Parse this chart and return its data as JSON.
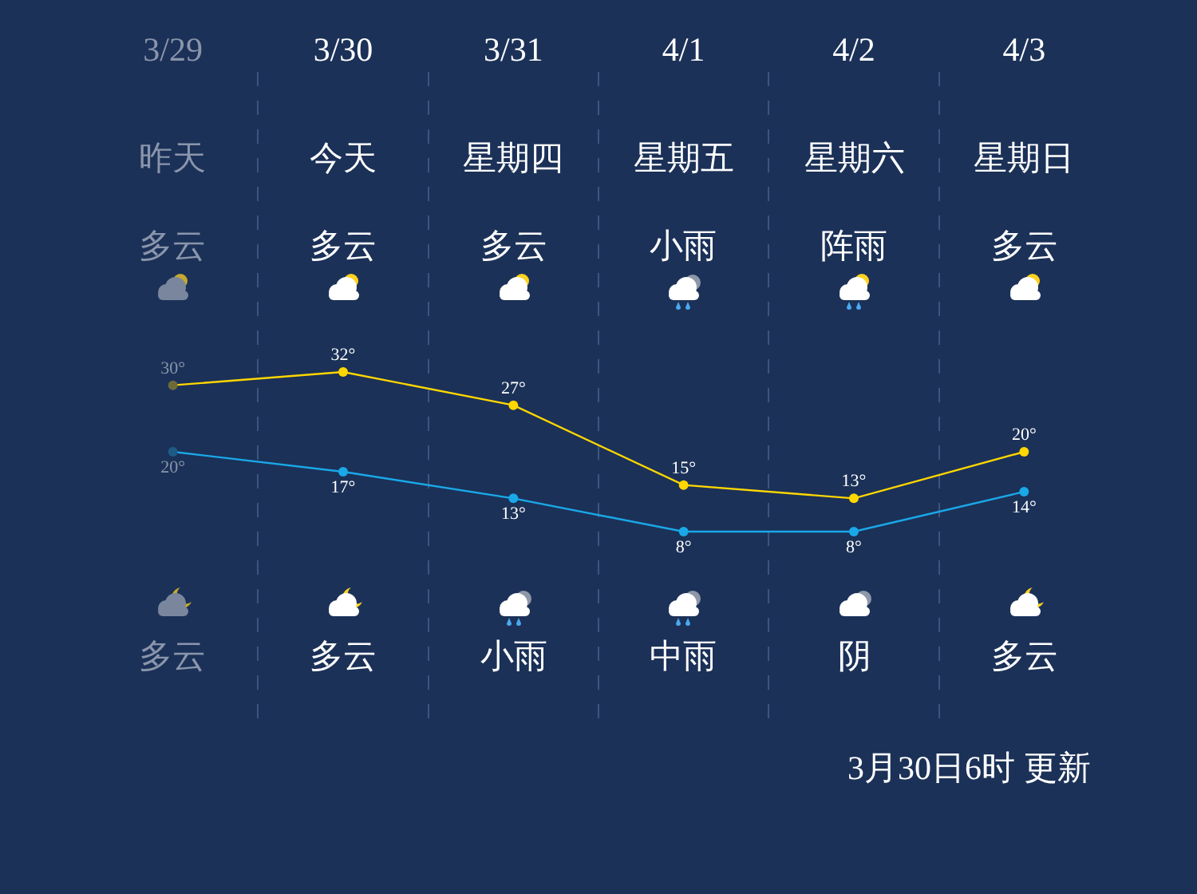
{
  "chart_data": {
    "type": "line",
    "categories": [
      "3/29",
      "3/30",
      "3/31",
      "4/1",
      "4/2",
      "4/3"
    ],
    "series": [
      {
        "color": "#ffd700",
        "colors": [
          "#6e6a3a",
          "#ffd700",
          "#ffd700",
          "#ffd700",
          "#ffd700",
          "#ffd700"
        ],
        "values": [
          30,
          32,
          27,
          15,
          13,
          20
        ],
        "value_labels": [
          "30°",
          "32°",
          "27°",
          "15°",
          "13°",
          "20°"
        ]
      },
      {
        "color": "#1aa8e8",
        "colors": [
          "#1f5a86",
          "#1aa8e8",
          "#1aa8e8",
          "#1aa8e8",
          "#1aa8e8",
          "#1aa8e8"
        ],
        "values": [
          20,
          17,
          13,
          8,
          8,
          14
        ],
        "value_labels": [
          "20°",
          "17°",
          "13°",
          "8°",
          "8°",
          "14°"
        ]
      }
    ],
    "marker": "circle",
    "line_style": "solid",
    "grid": "x",
    "tick_labels": "x",
    "annotations": [
      "昨天",
      "今天",
      "星期四",
      "星期五",
      "星期六",
      "星期日",
      "多云",
      "多云",
      "多云",
      "小雨",
      "阵雨",
      "多云",
      "多云",
      "多云",
      "小雨",
      "中雨",
      "阴",
      "多云",
      "3月30日6时 更新"
    ]
  }
}
